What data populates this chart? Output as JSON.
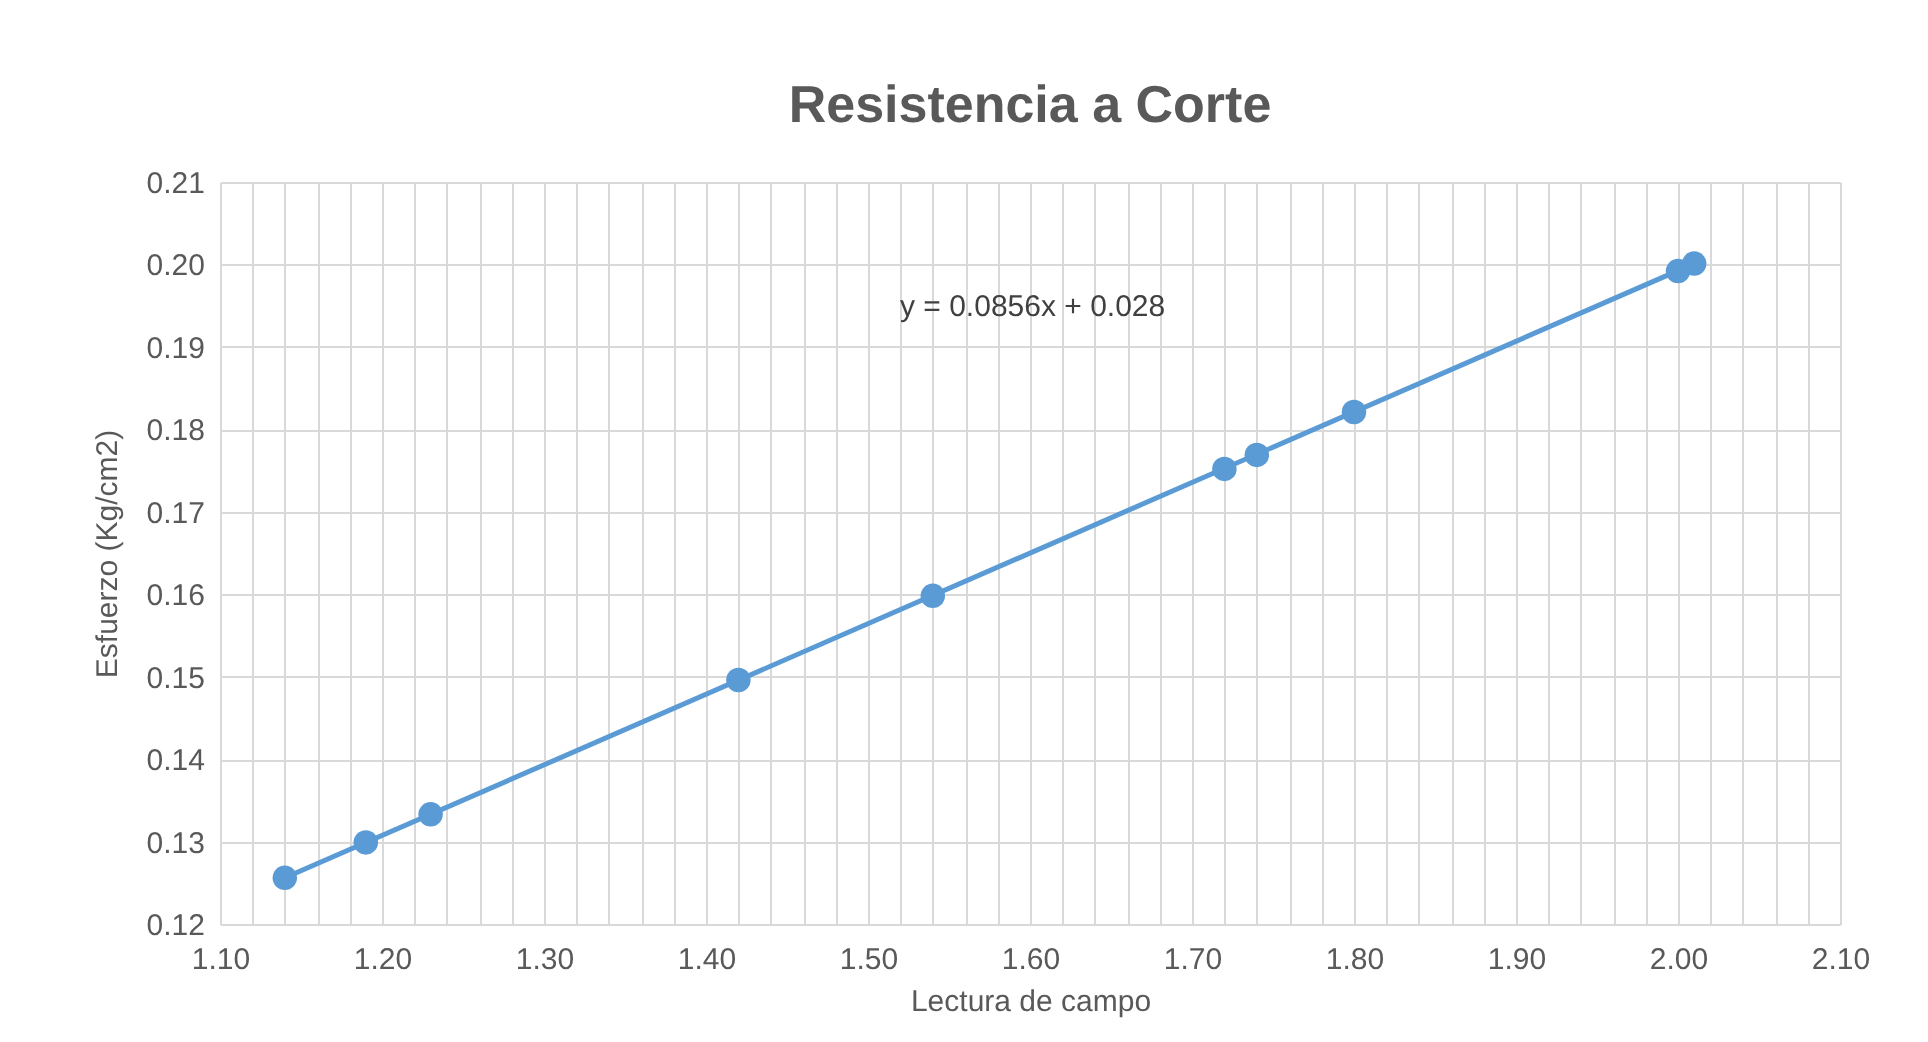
{
  "chart_data": {
    "type": "scatter",
    "title": "Resistencia a Corte",
    "xlabel": "Lectura de campo",
    "ylabel": "Esfuerzo (Kg/cm2)",
    "annotations": [
      "y = 0.0856x + 0.028"
    ],
    "x": [
      1.14,
      1.19,
      1.23,
      1.42,
      1.54,
      1.72,
      1.74,
      1.8,
      2.0,
      2.01
    ],
    "series": [
      {
        "color": "#5b9bd5",
        "values": [
          0.1256,
          0.1299,
          0.1333,
          0.1496,
          0.1598,
          0.1752,
          0.1769,
          0.1821,
          0.1992,
          0.2001
        ]
      },
      {
        "type": "line",
        "marker": "none",
        "color": "#5b9bd5",
        "x": [
          1.14,
          2.01
        ],
        "values": [
          0.1256,
          0.2001
        ]
      }
    ],
    "xlim": [
      1.1,
      2.1
    ],
    "xticks": [
      {
        "value": 1.1,
        "label": "1.10"
      },
      {
        "value": 1.12,
        "label": null
      },
      {
        "value": 1.14,
        "label": null
      },
      {
        "value": 1.16,
        "label": null
      },
      {
        "value": 1.18,
        "label": null
      },
      {
        "value": 1.2,
        "label": "1.20"
      },
      {
        "value": 1.22,
        "label": null
      },
      {
        "value": 1.24,
        "label": null
      },
      {
        "value": 1.26,
        "label": null
      },
      {
        "value": 1.28,
        "label": null
      },
      {
        "value": 1.3,
        "label": "1.30"
      },
      {
        "value": 1.32,
        "label": null
      },
      {
        "value": 1.34,
        "label": null
      },
      {
        "value": 1.36,
        "label": null
      },
      {
        "value": 1.38,
        "label": null
      },
      {
        "value": 1.4,
        "label": "1.40"
      },
      {
        "value": 1.42,
        "label": null
      },
      {
        "value": 1.44,
        "label": null
      },
      {
        "value": 1.46,
        "label": null
      },
      {
        "value": 1.48,
        "label": null
      },
      {
        "value": 1.5,
        "label": "1.50"
      },
      {
        "value": 1.52,
        "label": null
      },
      {
        "value": 1.54,
        "label": null
      },
      {
        "value": 1.56,
        "label": null
      },
      {
        "value": 1.58,
        "label": null
      },
      {
        "value": 1.6,
        "label": "1.60"
      },
      {
        "value": 1.62,
        "label": null
      },
      {
        "value": 1.64,
        "label": null
      },
      {
        "value": 1.66,
        "label": null
      },
      {
        "value": 1.68,
        "label": null
      },
      {
        "value": 1.7,
        "label": "1.70"
      },
      {
        "value": 1.72,
        "label": null
      },
      {
        "value": 1.74,
        "label": null
      },
      {
        "value": 1.76,
        "label": null
      },
      {
        "value": 1.78,
        "label": null
      },
      {
        "value": 1.8,
        "label": "1.80"
      },
      {
        "value": 1.82,
        "label": null
      },
      {
        "value": 1.84,
        "label": null
      },
      {
        "value": 1.86,
        "label": null
      },
      {
        "value": 1.88,
        "label": null
      },
      {
        "value": 1.9,
        "label": "1.90"
      },
      {
        "value": 1.92,
        "label": null
      },
      {
        "value": 1.94,
        "label": null
      },
      {
        "value": 1.96,
        "label": null
      },
      {
        "value": 1.98,
        "label": null
      },
      {
        "value": 2.0,
        "label": "2.00"
      },
      {
        "value": 2.02,
        "label": null
      },
      {
        "value": 2.04,
        "label": null
      },
      {
        "value": 2.06,
        "label": null
      },
      {
        "value": 2.08,
        "label": null
      },
      {
        "value": 2.1,
        "label": "2.10"
      }
    ],
    "ylim": [
      0.12,
      0.21
    ],
    "yticks": [
      0.12,
      0.13,
      0.14,
      0.15,
      0.16,
      0.17,
      0.18,
      0.19,
      {
        "value": 0.2,
        "label": "0.20"
      },
      0.21
    ],
    "grid": true,
    "marker": "circle"
  }
}
